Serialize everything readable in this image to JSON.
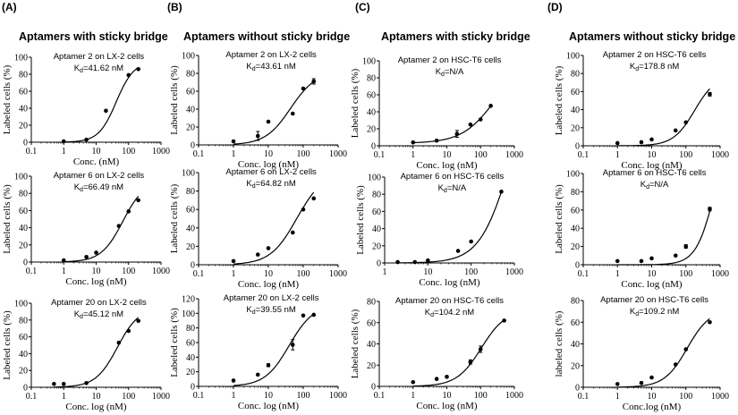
{
  "panel_labels": [
    "(A)",
    "(B)",
    "(C)",
    "(D)"
  ],
  "section_titles": [
    "Aptamers with sticky bridge",
    "Aptamers without sticky bridge",
    "Aptamers with sticky bridge",
    "Aptamers without sticky bridge"
  ],
  "kd_symbol": "K",
  "kd_subscript": "d",
  "chart_data": [
    {
      "type": "scatter",
      "panel": "A",
      "title": "Aptamer 2 on LX-2 cells",
      "kd_value": "=41.62 nM",
      "xlabel": "Conc. (nM)",
      "ylabel": "Labeled cells (%)",
      "xscale": "log",
      "xlim": [
        0.1,
        1000
      ],
      "ylim": [
        0,
        100
      ],
      "xticks": [
        "0.1",
        "1",
        "10",
        "100",
        "1000"
      ],
      "yticks": [
        "0",
        "20",
        "40",
        "60",
        "80",
        "100"
      ],
      "x": [
        1,
        5,
        20,
        100,
        200
      ],
      "y": [
        1,
        3,
        37,
        79,
        86
      ],
      "errors": [
        0,
        0,
        0,
        0,
        0
      ],
      "fit": {
        "bottom": 0,
        "top": 95,
        "kd": 41.62,
        "n": 1.6
      }
    },
    {
      "type": "scatter",
      "panel": "A",
      "title": "Aptamer 6 on LX-2 cells",
      "kd_value": "=66.49 nM",
      "xlabel": "Conc. log (nM)",
      "ylabel": "Labeled cells (%)",
      "xscale": "log",
      "xlim": [
        0.1,
        1000
      ],
      "ylim": [
        0,
        100
      ],
      "xticks": [
        "0.1",
        "1",
        "10",
        "100",
        "1000"
      ],
      "yticks": [
        "0",
        "20",
        "40",
        "60",
        "80",
        "100"
      ],
      "x": [
        1,
        5,
        10,
        50,
        100,
        200
      ],
      "y": [
        2,
        6,
        11,
        42,
        59,
        72
      ],
      "errors": [
        0,
        0,
        0,
        0,
        0,
        0
      ],
      "fit": {
        "bottom": 0,
        "top": 95,
        "kd": 66.49,
        "n": 1.3
      }
    },
    {
      "type": "scatter",
      "panel": "A",
      "title": "Aptamer 20 on LX-2 cells",
      "kd_value": "=45.12 nM",
      "xlabel": "Conc. log (nM)",
      "ylabel": "Labeled cells (%)",
      "xscale": "log",
      "xlim": [
        0.1,
        1000
      ],
      "ylim": [
        0,
        100
      ],
      "xticks": [
        "0.1",
        "1",
        "10",
        "100",
        "1000"
      ],
      "yticks": [
        "0",
        "20",
        "40",
        "60",
        "80",
        "100"
      ],
      "x": [
        0.5,
        1,
        5,
        50,
        100,
        200
      ],
      "y": [
        4,
        4,
        5,
        53,
        67,
        79
      ],
      "errors": [
        0,
        0,
        0,
        0,
        0,
        0
      ],
      "fit": {
        "bottom": 0,
        "top": 95,
        "kd": 45.12,
        "n": 1.3
      }
    },
    {
      "type": "scatter",
      "panel": "B",
      "title": "Aptamer 2 on LX-2 cells",
      "kd_value": "=43.61 nM",
      "xlabel": "Conc. log (nM)",
      "ylabel": "Labeled cells (%)",
      "xscale": "log",
      "xlim": [
        0.1,
        1000
      ],
      "ylim": [
        0,
        100
      ],
      "xticks": [
        "0.1",
        "1",
        "10",
        "100",
        "1000"
      ],
      "yticks": [
        "0",
        "20",
        "40",
        "60",
        "80",
        "100"
      ],
      "x": [
        1,
        5,
        10,
        50,
        100,
        200
      ],
      "y": [
        4,
        10,
        26,
        35,
        63,
        71
      ],
      "errors": [
        0,
        5,
        0,
        0,
        0,
        3
      ],
      "fit": {
        "bottom": 0,
        "top": 82,
        "kd": 43.61,
        "n": 1.2
      }
    },
    {
      "type": "scatter",
      "panel": "B",
      "title": "Aptamer 6 on LX-2 cells",
      "kd_value": "=64.82 nM",
      "xlabel": "Conc. log (nM)",
      "ylabel": "Labeled cells (%)",
      "xscale": "log",
      "xlim": [
        0.1,
        1000
      ],
      "ylim": [
        0,
        100
      ],
      "xticks": [
        "0.1",
        "1",
        "10",
        "100",
        "1000"
      ],
      "yticks": [
        "0",
        "20",
        "40",
        "60",
        "80",
        "100"
      ],
      "x": [
        1,
        5,
        10,
        50,
        100,
        200
      ],
      "y": [
        4,
        11,
        18,
        35,
        60,
        72
      ],
      "errors": [
        0,
        0,
        0,
        0,
        0,
        0
      ],
      "fit": {
        "bottom": 0,
        "top": 100,
        "kd": 64.82,
        "n": 1.15
      }
    },
    {
      "type": "scatter",
      "panel": "B",
      "title": "Aptamer 20 on LX-2 cells",
      "kd_value": "=39.55  nM",
      "xlabel": "Conc. log (nM)",
      "ylabel": "Labeled cells (%)",
      "xscale": "log",
      "xlim": [
        0.1,
        1000
      ],
      "ylim": [
        0,
        120
      ],
      "xticks": [
        "0.1",
        "1",
        "10",
        "100",
        "1000"
      ],
      "yticks": [
        "0",
        "20",
        "40",
        "60",
        "80",
        "100",
        "120"
      ],
      "x": [
        1,
        5,
        10,
        50,
        100,
        200
      ],
      "y": [
        8,
        16,
        29,
        57,
        97,
        98
      ],
      "errors": [
        0,
        0,
        2,
        7,
        0,
        0
      ],
      "fit": {
        "bottom": 0,
        "top": 112,
        "kd": 39.55,
        "n": 1.25
      }
    },
    {
      "type": "scatter",
      "panel": "C",
      "title": "Aptamer 2 on HSC-T6 cells",
      "kd_value": "=N/A",
      "xlabel": "Conc. log (nM)",
      "ylabel": "Labeled cells (%)",
      "xscale": "log",
      "xlim": [
        0.1,
        1000
      ],
      "ylim": [
        0,
        100
      ],
      "xticks": [
        "0.1",
        "1",
        "10",
        "100",
        "1000"
      ],
      "yticks": [
        "0",
        "20",
        "40",
        "60",
        "80",
        "100"
      ],
      "x": [
        1,
        5,
        20,
        50,
        100,
        200
      ],
      "y": [
        4,
        6,
        14,
        25,
        31,
        47
      ],
      "errors": [
        0,
        0,
        4,
        0,
        0,
        0
      ],
      "fit": {
        "bottom": 3,
        "top": 100,
        "kd": 250,
        "n": 0.9
      }
    },
    {
      "type": "scatter",
      "panel": "C",
      "title": "Aptamer 6 on HSC-T6 cells",
      "kd_value": "=N/A",
      "xlabel": "Conc. log (nM)",
      "ylabel": "Labeled cells (%)",
      "xscale": "log",
      "xlim": [
        1,
        1000
      ],
      "ylim": [
        0,
        100
      ],
      "xticks": [
        "1",
        "10",
        "100",
        "1000"
      ],
      "yticks": [
        "0",
        "20",
        "40",
        "60",
        "80",
        "100"
      ],
      "x": [
        2,
        5,
        10,
        50,
        100,
        500
      ],
      "y": [
        1,
        1,
        3,
        14,
        25,
        83
      ],
      "errors": [
        0,
        0,
        0,
        0,
        0,
        0
      ],
      "fit": {
        "bottom": 0,
        "top": 220,
        "kd": 750,
        "n": 1.25
      }
    },
    {
      "type": "scatter",
      "panel": "C",
      "title": "Aptamer 20 on HSC-T6 cells",
      "kd_value": "=104.2 nM",
      "xlabel": "Conc. log (nM)",
      "ylabel": "Labeled cells (%)",
      "xscale": "log",
      "xlim": [
        0.1,
        1000
      ],
      "ylim": [
        0,
        80
      ],
      "xticks": [
        "0.1",
        "1",
        "10",
        "100",
        "1000"
      ],
      "yticks": [
        "0",
        "20",
        "40",
        "60",
        "80"
      ],
      "x": [
        1,
        5,
        10,
        50,
        100,
        500
      ],
      "y": [
        4,
        7,
        9,
        23,
        35,
        62
      ],
      "errors": [
        0,
        0,
        0,
        2,
        3,
        0
      ],
      "fit": {
        "bottom": 0,
        "top": 72,
        "kd": 104.2,
        "n": 1.2
      }
    },
    {
      "type": "scatter",
      "panel": "D",
      "title": "Aptamer 2 on HSC-T6 cells",
      "kd_value": "=178.8  nM",
      "xlabel": "Conc. log (nM)",
      "ylabel": "Labeled cells (%)",
      "xscale": "log",
      "xlim": [
        0.1,
        1000
      ],
      "ylim": [
        0,
        100
      ],
      "xticks": [
        "0.1",
        "1",
        "10",
        "100",
        "1000"
      ],
      "yticks": [
        "0",
        "20",
        "40",
        "60",
        "80",
        "100"
      ],
      "x": [
        1,
        5,
        10,
        50,
        100,
        500
      ],
      "y": [
        3,
        4,
        7,
        17,
        26,
        57
      ],
      "errors": [
        0,
        0,
        0,
        0,
        0,
        2
      ],
      "fit": {
        "bottom": 0,
        "top": 78,
        "kd": 178.8,
        "n": 1.4
      }
    },
    {
      "type": "scatter",
      "panel": "D",
      "title": "Aptamer 6 on HSC-T6 cells",
      "kd_value": "=N/A",
      "xlabel": "Conc. log (nM)",
      "ylabel": "Labeled cells (%)",
      "xscale": "log",
      "xlim": [
        0.1,
        1000
      ],
      "ylim": [
        0,
        100
      ],
      "xticks": [
        "0.1",
        "1",
        "10",
        "100",
        "1000"
      ],
      "yticks": [
        "0",
        "20",
        "40",
        "60",
        "80",
        "100"
      ],
      "x": [
        1,
        5,
        10,
        50,
        100,
        500
      ],
      "y": [
        4,
        4,
        7,
        10,
        20,
        61
      ],
      "errors": [
        0,
        0,
        0,
        0,
        2,
        2
      ],
      "fit": {
        "bottom": 0,
        "top": 160,
        "kd": 700,
        "n": 1.6
      }
    },
    {
      "type": "scatter",
      "panel": "D",
      "title": "Aptamer 20 on HSC-T6  cells",
      "kd_value": "=109.2  nM",
      "xlabel": "Conc.log (nM)",
      "ylabel": "labeled cells (%)",
      "xscale": "log",
      "xlim": [
        0.1,
        1000
      ],
      "ylim": [
        0,
        80
      ],
      "xticks": [
        "0.1",
        "1",
        "10",
        "100",
        "1000"
      ],
      "yticks": [
        "0",
        "20",
        "40",
        "60",
        "80"
      ],
      "x": [
        1,
        5,
        10,
        50,
        100,
        500
      ],
      "y": [
        3,
        4,
        9,
        21,
        35,
        60
      ],
      "errors": [
        0,
        0,
        0,
        0,
        0,
        0
      ],
      "fit": {
        "bottom": 0,
        "top": 72,
        "kd": 109.2,
        "n": 1.3
      }
    }
  ]
}
